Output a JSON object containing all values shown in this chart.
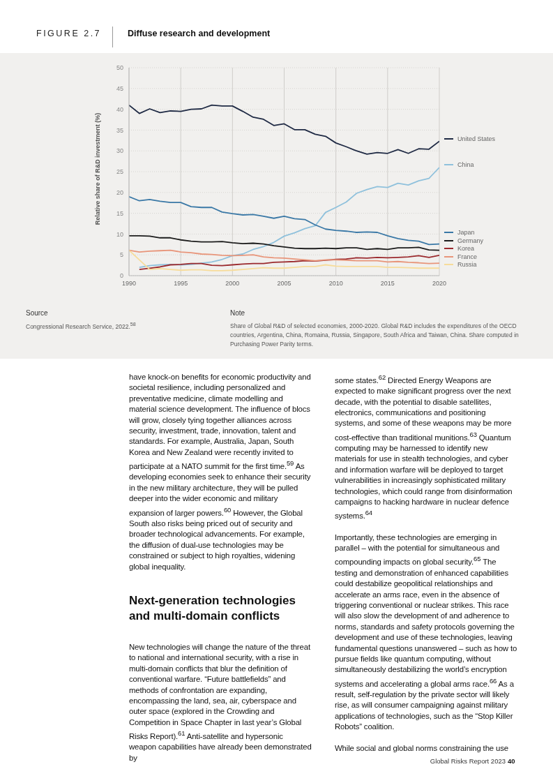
{
  "chart_data": {
    "type": "line",
    "subtitle": "FIGURE 2.7",
    "title": "Diffuse research and development",
    "ylabel": "Relative share of R&D investment (%)",
    "x": [
      1990,
      1991,
      1992,
      1993,
      1994,
      1995,
      1996,
      1997,
      1998,
      1999,
      2000,
      2001,
      2002,
      2003,
      2004,
      2005,
      2006,
      2007,
      2008,
      2009,
      2010,
      2011,
      2012,
      2013,
      2014,
      2015,
      2016,
      2017,
      2018,
      2019,
      2020
    ],
    "series": [
      {
        "name": "United States",
        "color": "#1f2a44",
        "values": [
          41,
          39,
          40.1,
          39.2,
          39.6,
          39.5,
          40,
          40.1,
          41,
          40.8,
          40.8,
          39.5,
          38.1,
          37.6,
          36.1,
          36.5,
          35.1,
          35.1,
          34,
          33.5,
          31.9,
          31,
          30,
          29.2,
          29.6,
          29.4,
          30.3,
          29.4,
          30.5,
          30.4,
          32.3
        ]
      },
      {
        "name": "China",
        "color": "#8fc1dc",
        "values": [
          null,
          2,
          2.4,
          2.6,
          2.7,
          2.6,
          2.7,
          3,
          3.3,
          3.9,
          4.8,
          5.2,
          6.3,
          7,
          8,
          9.5,
          10.3,
          11.3,
          12,
          15.2,
          16.4,
          17.7,
          19.8,
          20.7,
          21.4,
          21.2,
          22.2,
          21.8,
          22.8,
          23.4,
          26
        ]
      },
      {
        "name": "Japan",
        "color": "#3a78a6",
        "values": [
          19,
          18,
          18.3,
          17.9,
          17.6,
          17.6,
          16.6,
          16.4,
          16.4,
          15.3,
          14.9,
          14.6,
          14.7,
          14.3,
          13.8,
          14.3,
          13.7,
          13.5,
          12.2,
          11.2,
          10.9,
          10.7,
          10.4,
          10.5,
          10.4,
          9.6,
          8.9,
          8.5,
          8.3,
          7.5,
          7.6
        ]
      },
      {
        "name": "Germany",
        "color": "#1c1c1c",
        "values": [
          9.6,
          9.6,
          9.5,
          9.1,
          9.1,
          8.6,
          8.3,
          8.1,
          8.1,
          8.2,
          7.9,
          7.7,
          7.8,
          7.6,
          7.2,
          6.9,
          6.6,
          6.5,
          6.5,
          6.6,
          6.5,
          6.7,
          6.7,
          6.3,
          6.5,
          6.3,
          6.7,
          6.7,
          6.8,
          6.2,
          6.1
        ]
      },
      {
        "name": "Korea",
        "color": "#9b2a2e",
        "values": [
          null,
          1.5,
          1.8,
          2.1,
          2.6,
          2.7,
          2.9,
          2.9,
          2.5,
          2.4,
          2.6,
          2.8,
          2.9,
          2.9,
          3.2,
          3.3,
          3.4,
          3.6,
          3.5,
          3.7,
          3.9,
          4,
          4.3,
          4.2,
          4.4,
          4.3,
          4.4,
          4.5,
          4.8,
          4.4,
          4.9
        ]
      },
      {
        "name": "France",
        "color": "#e8957a",
        "values": [
          6.1,
          5.7,
          5.9,
          6,
          6.1,
          5.7,
          5.5,
          5.2,
          5.1,
          4.9,
          4.8,
          4.9,
          5,
          4.5,
          4.3,
          4.2,
          4,
          3.8,
          3.6,
          3.8,
          3.8,
          3.7,
          3.6,
          3.6,
          3.6,
          3.3,
          3.4,
          3.2,
          3.1,
          2.9,
          3
        ]
      },
      {
        "name": "Russia",
        "color": "#f7dc9a",
        "values": [
          6.1,
          3.8,
          1.5,
          1.7,
          1.5,
          1.3,
          1.4,
          1.4,
          1.2,
          1.2,
          1.3,
          1.5,
          1.7,
          1.9,
          1.8,
          1.8,
          2,
          2.2,
          2.2,
          2.6,
          2.3,
          2.2,
          2.2,
          2.2,
          2.2,
          2,
          2,
          1.9,
          1.8,
          1.8,
          1.8
        ]
      }
    ],
    "xlim": [
      1990,
      2020
    ],
    "xticks": [
      1990,
      1995,
      2000,
      2005,
      2010,
      2015,
      2020
    ],
    "ylim": [
      0,
      50
    ],
    "yticks": [
      0,
      5,
      10,
      15,
      20,
      25,
      30,
      35,
      40,
      45,
      50
    ],
    "grid": true,
    "legend": "right",
    "annotations": [
      "Source",
      "Congressional Research Service, 2022.$^{58}$",
      "Note",
      "Share of Global R&D of selected economies, 2000-2020. Global R&D includes the expenditures of the OECD countries, Argentina, China, Romaina, Russia, Singapore, South Africa and Taiwan, China. Share computed in Purchasing Power Parity terms.",
      "have knock-on benefits for economic productivity and societal resilience, including personalized and preventative medicine, climate modelling and material science development. The influence of blocs will grow, closely tying together alliances across security, investment, trade, innovation, talent and standards. For example, Australia, Japan, South Korea and New Zealand were recently invited to participate at a NATO summit for the first time.$^{59}$ As developing economies seek to enhance their security in the new military architecture, they will be pulled deeper into the wider economic and military expansion of larger powers.$^{60}$ However, the Global South also risks being priced out of security and broader technological advancements. For example, the diffusion of dual-use technologies may be constrained or subject to high royalties, widening global inequality.",
      "Next-generation technologies and multi-domain conflicts",
      "New technologies will change the nature of the threat to national and international security, with a rise in multi-domain conflicts that blur the definition of conventional warfare. “Future battlefields” and methods of confrontation are expanding, encompassing the land, sea, air, cyberspace and outer space (explored in the Crowding and Competition in Space Chapter in last year’s Global Risks Report).$^{61}$ Anti-satellite and hypersonic weapon capabilities have already been demonstrated by",
      "some states.$^{62}$ Directed Energy Weapons are expected to make significant progress over the next decade, with the potential to disable satellites, electronics, communications and positioning systems, and some of these weapons may be more cost-effective than traditional munitions.$^{63}$ Quantum computing may be harnessed to identify new materials for use in stealth technologies, and cyber and information warfare will be deployed to target vulnerabilities in increasingly sophisticated military technologies, which could range from disinformation campaigns to hacking hardware in nuclear defence systems.$^{64}$",
      "Importantly, these technologies are emerging in parallel – with the potential for simultaneous and compounding impacts on global security.$^{65}$ The testing and demonstration of enhanced capabilities could destabilize geopolitical relationships and accelerate an arms race, even in the absence of triggering conventional or nuclear strikes. This race will also slow the development of and adherence to norms, standards and safety protocols governing the development and use of these technologies, leaving fundamental questions unanswered – such as how to pursue fields like quantum computing, without simultaneously destabilizing the world’s encryption systems and accelerating a global arms race.$^{66}$ As a result, self-regulation by the private sector will likely rise, as will consumer campaigning against military applications of technologies, such as the “Stop Killer Robots” coalition.",
      "While social and global norms constraining the use",
      "Global Risks Report 2023",
      "40"
    ]
  }
}
